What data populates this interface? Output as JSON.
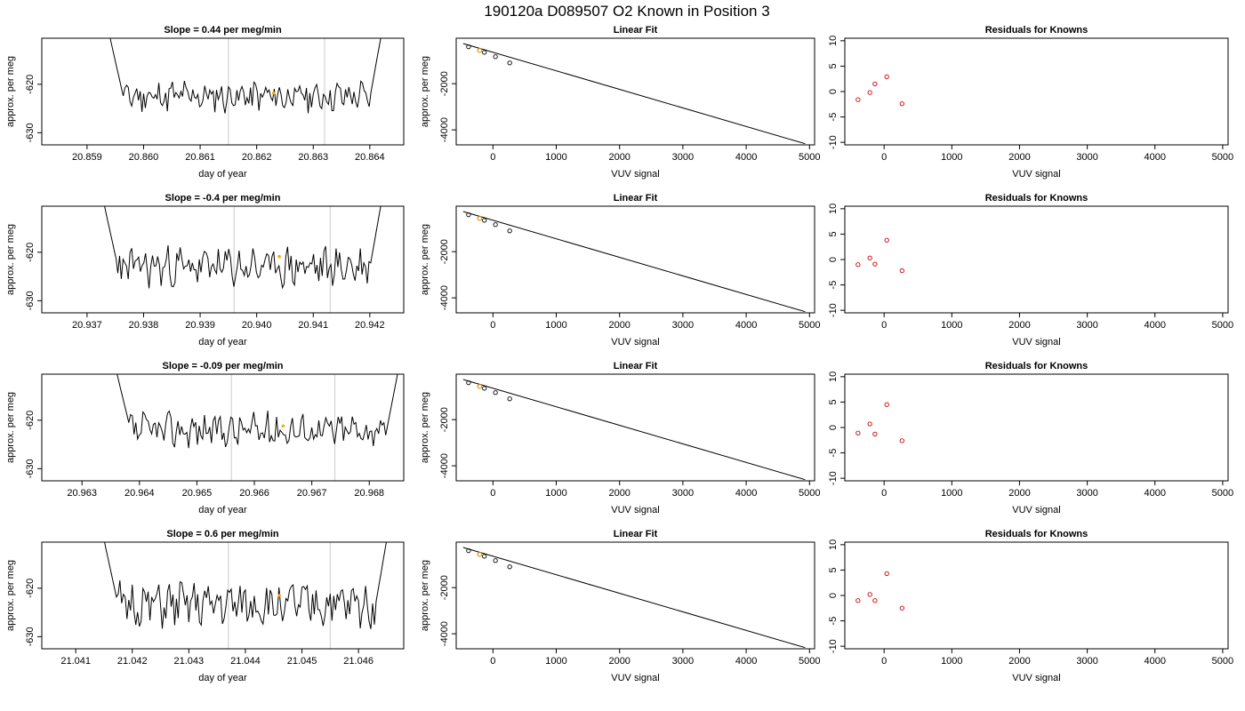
{
  "title": "190120a     D089507   O2 Known in Position  3",
  "colors": {
    "trace": "#000000",
    "guide": "#cccccc",
    "marker": "#ffa500",
    "fit_points": "#000000",
    "residuals": "#cc0000"
  },
  "chart_data": [
    {
      "panel": "trace",
      "row": 1,
      "type": "line",
      "title": "Slope =  0.44  per meg/min",
      "xlabel": "day of year",
      "ylabel": "approx. per meg",
      "xticks": [
        "20.859",
        "20.860",
        "20.861",
        "20.862",
        "20.863",
        "20.864"
      ],
      "yticks": [
        "-620",
        "-630"
      ],
      "xlim": [
        20.8582,
        20.8646
      ],
      "ylim": [
        -632.5,
        -610.5
      ],
      "series": {
        "x_start": 20.8594,
        "x_end": 20.8642,
        "start": -610,
        "end": -610,
        "center": -622.5,
        "noise": 1.2,
        "seed": 11
      },
      "guides": [
        20.8615,
        20.8632
      ],
      "marker": {
        "x": 20.8623,
        "y": -621.8
      }
    },
    {
      "panel": "fit",
      "row": 1,
      "type": "scatter",
      "title": "Linear Fit",
      "xlabel": "VUV signal",
      "ylabel": "approx. per meg",
      "xticks": [
        "0",
        "1000",
        "2000",
        "3000",
        "4000",
        "5000"
      ],
      "yticks": [
        "-2000",
        "-4000"
      ],
      "xlim": [
        -580,
        5080
      ],
      "ylim": [
        -4650,
        -30
      ],
      "points": [
        [
          -385,
          -400
        ],
        [
          -210,
          -560
        ],
        [
          -135,
          -640
        ],
        [
          40,
          -830
        ],
        [
          265,
          -1100
        ]
      ],
      "highlight": [
        [
          -210,
          -560
        ]
      ],
      "line": [
        [
          -470,
          -260
        ],
        [
          4930,
          -4600
        ]
      ]
    },
    {
      "panel": "residuals",
      "row": 1,
      "type": "scatter",
      "title": "Residuals for Knowns",
      "xlabel": "VUV signal",
      "xticks": [
        "0",
        "1000",
        "2000",
        "3000",
        "4000",
        "5000"
      ],
      "yticks": [
        "10",
        "5",
        "0",
        "-5",
        "-10"
      ],
      "xlim": [
        -580,
        5080
      ],
      "ylim": [
        -10.5,
        10.5
      ],
      "points": [
        [
          -385,
          -1.6
        ],
        [
          -210,
          -0.2
        ],
        [
          -135,
          1.5
        ],
        [
          40,
          2.9
        ],
        [
          265,
          -2.4
        ]
      ]
    },
    {
      "panel": "trace",
      "row": 2,
      "type": "line",
      "title": "Slope =  -0.4  per meg/min",
      "xlabel": "day of year",
      "ylabel": "approx. per meg",
      "xticks": [
        "20.937",
        "20.938",
        "20.939",
        "20.940",
        "20.941",
        "20.942"
      ],
      "yticks": [
        "-620",
        "-630"
      ],
      "xlim": [
        20.9362,
        20.9426
      ],
      "ylim": [
        -632.5,
        -610.5
      ],
      "series": {
        "x_start": 20.9373,
        "x_end": 20.9422,
        "start": -610,
        "end": -610,
        "center": -623,
        "noise": 1.5,
        "seed": 23
      },
      "guides": [
        20.9396,
        20.9413
      ],
      "marker": {
        "x": 20.9404,
        "y": -620.9
      }
    },
    {
      "panel": "fit",
      "row": 2,
      "type": "scatter",
      "title": "Linear Fit",
      "xlabel": "VUV signal",
      "ylabel": "approx. per meg",
      "xticks": [
        "0",
        "1000",
        "2000",
        "3000",
        "4000",
        "5000"
      ],
      "yticks": [
        "-2000",
        "-4000"
      ],
      "xlim": [
        -580,
        5080
      ],
      "ylim": [
        -4650,
        -30
      ],
      "points": [
        [
          -385,
          -400
        ],
        [
          -210,
          -560
        ],
        [
          -135,
          -640
        ],
        [
          40,
          -830
        ],
        [
          265,
          -1100
        ]
      ],
      "highlight": [
        [
          -210,
          -560
        ]
      ],
      "line": [
        [
          -470,
          -260
        ],
        [
          4930,
          -4600
        ]
      ]
    },
    {
      "panel": "residuals",
      "row": 2,
      "type": "scatter",
      "title": "Residuals for Knowns",
      "xlabel": "VUV signal",
      "xticks": [
        "0",
        "1000",
        "2000",
        "3000",
        "4000",
        "5000"
      ],
      "yticks": [
        "10",
        "5",
        "0",
        "-5",
        "-10"
      ],
      "xlim": [
        -580,
        5080
      ],
      "ylim": [
        -10.5,
        10.5
      ],
      "points": [
        [
          -385,
          -1.0
        ],
        [
          -210,
          0.3
        ],
        [
          -135,
          -0.9
        ],
        [
          40,
          3.8
        ],
        [
          265,
          -2.2
        ]
      ]
    },
    {
      "panel": "trace",
      "row": 3,
      "type": "line",
      "title": "Slope =  -0.09  per meg/min",
      "xlabel": "day of year",
      "ylabel": "approx. per meg",
      "xticks": [
        "20.963",
        "20.964",
        "20.965",
        "20.966",
        "20.967",
        "20.968"
      ],
      "yticks": [
        "-620",
        "-630"
      ],
      "xlim": [
        20.9623,
        20.9686
      ],
      "ylim": [
        -632.5,
        -610.5
      ],
      "series": {
        "x_start": 20.9636,
        "x_end": 20.9685,
        "start": -610,
        "end": -610,
        "center": -622,
        "noise": 1.3,
        "seed": 37
      },
      "guides": [
        20.9656,
        20.9674
      ],
      "marker": {
        "x": 20.9665,
        "y": -621.2
      }
    },
    {
      "panel": "fit",
      "row": 3,
      "type": "scatter",
      "title": "Linear Fit",
      "xlabel": "VUV signal",
      "ylabel": "approx. per meg",
      "xticks": [
        "0",
        "1000",
        "2000",
        "3000",
        "4000",
        "5000"
      ],
      "yticks": [
        "-2000",
        "-4000"
      ],
      "xlim": [
        -580,
        5080
      ],
      "ylim": [
        -4650,
        -30
      ],
      "points": [
        [
          -385,
          -400
        ],
        [
          -210,
          -560
        ],
        [
          -135,
          -640
        ],
        [
          40,
          -830
        ],
        [
          265,
          -1100
        ]
      ],
      "highlight": [
        [
          -210,
          -560
        ]
      ],
      "line": [
        [
          -470,
          -260
        ],
        [
          4930,
          -4600
        ]
      ]
    },
    {
      "panel": "residuals",
      "row": 3,
      "type": "scatter",
      "title": "Residuals for Knowns",
      "xlabel": "VUV signal",
      "xticks": [
        "0",
        "1000",
        "2000",
        "3000",
        "4000",
        "5000"
      ],
      "yticks": [
        "10",
        "5",
        "0",
        "-5",
        "-10"
      ],
      "xlim": [
        -580,
        5080
      ],
      "ylim": [
        -10.5,
        10.5
      ],
      "points": [
        [
          -385,
          -1.1
        ],
        [
          -210,
          0.7
        ],
        [
          -135,
          -1.3
        ],
        [
          40,
          4.5
        ],
        [
          265,
          -2.6
        ]
      ]
    },
    {
      "panel": "trace",
      "row": 4,
      "type": "line",
      "title": "Slope =  0.6  per meg/min",
      "xlabel": "day of year",
      "ylabel": "approx. per meg",
      "xticks": [
        "21.041",
        "21.042",
        "21.043",
        "21.044",
        "21.045",
        "21.046"
      ],
      "yticks": [
        "-620",
        "-630"
      ],
      "xlim": [
        21.0404,
        21.0468
      ],
      "ylim": [
        -632.5,
        -610.5
      ],
      "series": {
        "x_start": 21.0415,
        "x_end": 21.0465,
        "start": -610,
        "end": -610,
        "center": -623.5,
        "noise": 1.7,
        "seed": 51
      },
      "guides": [
        21.0437,
        21.0455
      ],
      "marker": {
        "x": 21.0446,
        "y": -621.5
      }
    },
    {
      "panel": "fit",
      "row": 4,
      "type": "scatter",
      "title": "Linear Fit",
      "xlabel": "VUV signal",
      "ylabel": "approx. per meg",
      "xticks": [
        "0",
        "1000",
        "2000",
        "3000",
        "4000",
        "5000"
      ],
      "yticks": [
        "-2000",
        "-4000"
      ],
      "xlim": [
        -580,
        5080
      ],
      "ylim": [
        -4650,
        -30
      ],
      "points": [
        [
          -385,
          -400
        ],
        [
          -210,
          -560
        ],
        [
          -135,
          -640
        ],
        [
          40,
          -830
        ],
        [
          265,
          -1100
        ]
      ],
      "highlight": [
        [
          -210,
          -560
        ]
      ],
      "line": [
        [
          -470,
          -260
        ],
        [
          4930,
          -4600
        ]
      ]
    },
    {
      "panel": "residuals",
      "row": 4,
      "type": "scatter",
      "title": "Residuals for Knowns",
      "xlabel": "VUV signal",
      "xticks": [
        "0",
        "1000",
        "2000",
        "3000",
        "4000",
        "5000"
      ],
      "yticks": [
        "10",
        "5",
        "0",
        "-5",
        "-10"
      ],
      "xlim": [
        -580,
        5080
      ],
      "ylim": [
        -10.5,
        10.5
      ],
      "points": [
        [
          -385,
          -1.0
        ],
        [
          -210,
          0.2
        ],
        [
          -135,
          -1.0
        ],
        [
          40,
          4.3
        ],
        [
          265,
          -2.5
        ]
      ]
    }
  ]
}
